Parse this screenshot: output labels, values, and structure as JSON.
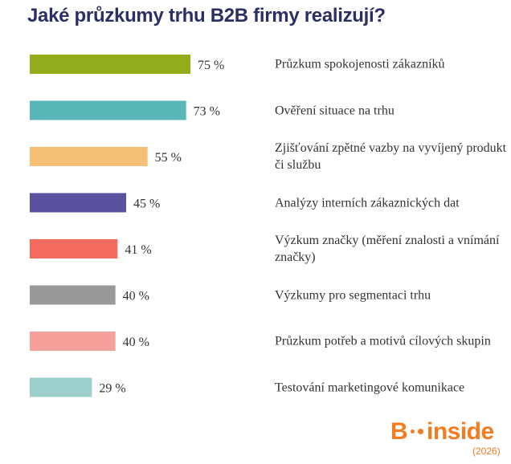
{
  "chart_data": {
    "type": "bar",
    "orientation": "horizontal",
    "title": "Jaké průzkumy trhu B2B firmy realizují?",
    "categories": [
      "Průzkum spokojenosti zákazníků",
      "Ověření situace na trhu",
      "Zjišťování zpětné vazby na vyvíjený produkt či službu",
      "Analýzy interních zákaznických dat",
      "Výzkum značky (měření znalosti a vnímání značky)",
      "Výzkumy pro segmentaci trhu",
      "Průzkum potřeb a motivů cílových skupin",
      "Testování marketingové komunikace"
    ],
    "values": [
      75,
      73,
      55,
      45,
      41,
      40,
      40,
      29
    ],
    "value_labels": [
      "75 %",
      "73 %",
      "55 %",
      "45 %",
      "41 %",
      "40 %",
      "40 %",
      "29 %"
    ],
    "colors": [
      "#94ad1d",
      "#5ab7b8",
      "#f4c076",
      "#5a52a0",
      "#f36a5e",
      "#999999",
      "#f5a09a",
      "#9dcfcd"
    ],
    "xlim": [
      0,
      75
    ],
    "grid": false,
    "legend": "none"
  },
  "brand": {
    "logo_letter": "B",
    "logo_word": "inside",
    "year": "(2026)",
    "color": "#f47b20"
  }
}
